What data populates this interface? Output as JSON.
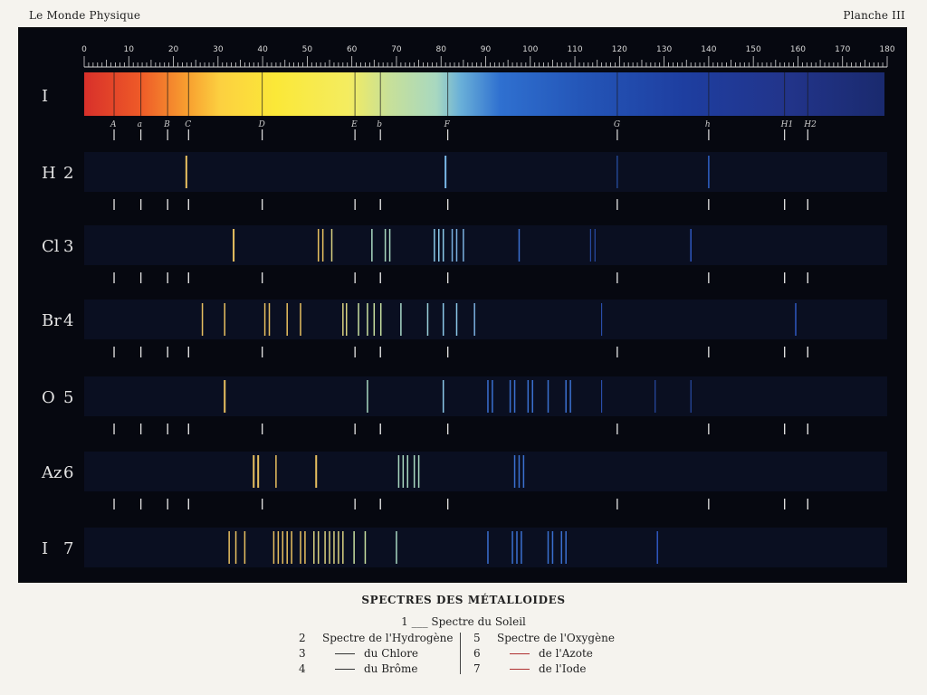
{
  "header": {
    "left": "Le Monde Physique",
    "right": "Planche III"
  },
  "plate": {
    "scale_ticks": [
      "0",
      "10",
      "20",
      "30",
      "40",
      "50",
      "60",
      "70",
      "80",
      "90",
      "100",
      "110",
      "120",
      "130",
      "140",
      "150",
      "160",
      "170",
      "180"
    ],
    "fraunhofer_lines": [
      {
        "label": "A",
        "pos": 6.7
      },
      {
        "label": "a",
        "pos": 12.7
      },
      {
        "label": "B",
        "pos": 18.7
      },
      {
        "label": "C",
        "pos": 23.4
      },
      {
        "label": "D",
        "pos": 39.9
      },
      {
        "label": "E",
        "pos": 60.7
      },
      {
        "label": "b",
        "pos": 66.4
      },
      {
        "label": "F",
        "pos": 81.5
      },
      {
        "label": "G",
        "pos": 119.5
      },
      {
        "label": "h",
        "pos": 140.0
      },
      {
        "label": "H1",
        "pos": 157.0
      },
      {
        "label": "H2",
        "pos": 162.2
      }
    ],
    "rows": [
      {
        "symbol": "I",
        "number": "",
        "kind": "solar"
      },
      {
        "symbol": "H",
        "number": "2",
        "kind": "emission",
        "lines": [
          [
            22.9,
            "#e8c060",
            2
          ],
          [
            81.0,
            "#7ab8e8",
            2
          ],
          [
            119.5,
            "#2f62c8",
            1
          ],
          [
            140.0,
            "#2f62c8",
            1.5
          ]
        ]
      },
      {
        "symbol": "Cl",
        "number": "3",
        "kind": "emission",
        "lines": [
          [
            33.5,
            "#e8c060",
            2
          ],
          [
            52.5,
            "#e8c060",
            1.5
          ],
          [
            53.5,
            "#e8c060",
            1.5
          ],
          [
            55.5,
            "#d8d080",
            1.5
          ],
          [
            64.5,
            "#a8d8c0",
            1.5
          ],
          [
            67.5,
            "#a8d8c0",
            1.5
          ],
          [
            68.5,
            "#a8d8c0",
            1.5
          ],
          [
            78.5,
            "#8ac8e8",
            1.5
          ],
          [
            79.5,
            "#8ac8e8",
            1.5
          ],
          [
            80.5,
            "#8ac8e8",
            1.5
          ],
          [
            82.5,
            "#7ab0e0",
            1.5
          ],
          [
            83.5,
            "#7ab0e0",
            1.5
          ],
          [
            85.0,
            "#7ab0e0",
            1.5
          ],
          [
            97.5,
            "#3a70d0",
            1.5
          ],
          [
            113.5,
            "#2f58c0",
            1
          ],
          [
            114.5,
            "#2f58c0",
            1
          ],
          [
            136.0,
            "#2f58c0",
            1.5
          ]
        ]
      },
      {
        "symbol": "Br",
        "number": "4",
        "kind": "emission",
        "lines": [
          [
            26.5,
            "#e8c060",
            1.5
          ],
          [
            31.5,
            "#e8c060",
            1.5
          ],
          [
            40.5,
            "#e8c060",
            1.5
          ],
          [
            41.5,
            "#e8c060",
            1.5
          ],
          [
            45.5,
            "#e8c060",
            1.5
          ],
          [
            48.5,
            "#e8c060",
            1.5
          ],
          [
            58.0,
            "#d8d080",
            1.5
          ],
          [
            58.8,
            "#d8d080",
            1.5
          ],
          [
            61.5,
            "#c8e0a0",
            1.5
          ],
          [
            63.5,
            "#c8e0a0",
            1.5
          ],
          [
            65.0,
            "#c8e0a0",
            1.5
          ],
          [
            66.5,
            "#c8e0a0",
            1.5
          ],
          [
            71.0,
            "#a8d8c8",
            1.5
          ],
          [
            77.0,
            "#9ad0d8",
            1.5
          ],
          [
            80.5,
            "#8ac8e8",
            1.5
          ],
          [
            83.5,
            "#8ac8e8",
            1.5
          ],
          [
            87.5,
            "#7ab0e0",
            1.5
          ],
          [
            116.0,
            "#2f58c0",
            1
          ],
          [
            159.5,
            "#2f58c0",
            1.5
          ]
        ]
      },
      {
        "symbol": "O",
        "number": "5",
        "kind": "emission",
        "lines": [
          [
            31.5,
            "#e8c060",
            2
          ],
          [
            63.5,
            "#a8d8c0",
            1.5
          ],
          [
            80.5,
            "#8ac8e8",
            1.5
          ],
          [
            90.5,
            "#3a70d0",
            1.5
          ],
          [
            91.5,
            "#3a70d0",
            1.5
          ],
          [
            95.5,
            "#3a70d0",
            1.5
          ],
          [
            96.5,
            "#3a70d0",
            1.5
          ],
          [
            99.5,
            "#3a70d0",
            1.5
          ],
          [
            100.5,
            "#3a70d0",
            1.5
          ],
          [
            104.0,
            "#3a70d0",
            1.5
          ],
          [
            108.0,
            "#3a70d0",
            1.5
          ],
          [
            109.0,
            "#3a70d0",
            1.5
          ],
          [
            116.0,
            "#2f58c0",
            1
          ],
          [
            128.0,
            "#2f58c0",
            1
          ],
          [
            136.0,
            "#2f58c0",
            1
          ]
        ]
      },
      {
        "symbol": "Az",
        "number": "6",
        "kind": "emission",
        "lines": [
          [
            38.0,
            "#e8c060",
            2
          ],
          [
            39.0,
            "#e8c060",
            2
          ],
          [
            43.0,
            "#e8c060",
            1.5
          ],
          [
            52.0,
            "#e8c060",
            2
          ],
          [
            70.5,
            "#a8d8c0",
            1.5
          ],
          [
            71.5,
            "#a8d8c0",
            1.5
          ],
          [
            72.5,
            "#a8d8c0",
            1.5
          ],
          [
            74.0,
            "#a8d8c0",
            1.5
          ],
          [
            75.0,
            "#a8d8c0",
            1.5
          ],
          [
            96.5,
            "#3a70d0",
            1.5
          ],
          [
            97.5,
            "#3a70d0",
            1.5
          ],
          [
            98.5,
            "#3a70d0",
            1.5
          ]
        ]
      },
      {
        "symbol": "I",
        "number": "7",
        "kind": "emission",
        "lines": [
          [
            32.5,
            "#e8c060",
            1.5
          ],
          [
            34.0,
            "#e8c060",
            1.5
          ],
          [
            36.0,
            "#e8c060",
            1.5
          ],
          [
            42.5,
            "#e8c060",
            1.5
          ],
          [
            43.5,
            "#e8c060",
            1.5
          ],
          [
            44.5,
            "#e8c060",
            1.5
          ],
          [
            45.5,
            "#e8c060",
            1.5
          ],
          [
            46.5,
            "#e8c060",
            1.5
          ],
          [
            48.5,
            "#e8c060",
            1.5
          ],
          [
            49.5,
            "#e8c060",
            1.5
          ],
          [
            51.5,
            "#d8d080",
            1.5
          ],
          [
            52.5,
            "#d8d080",
            1.5
          ],
          [
            54.0,
            "#d8d080",
            1.5
          ],
          [
            55.0,
            "#d8d080",
            1.5
          ],
          [
            56.0,
            "#d8d080",
            1.5
          ],
          [
            57.0,
            "#d8d080",
            1.5
          ],
          [
            58.0,
            "#d8d080",
            1.5
          ],
          [
            60.5,
            "#c8e0a0",
            1.5
          ],
          [
            63.0,
            "#c8e0a0",
            1.5
          ],
          [
            70.0,
            "#a8d8c0",
            1.5
          ],
          [
            90.5,
            "#3a70d0",
            1.5
          ],
          [
            96.0,
            "#3a70d0",
            1.5
          ],
          [
            97.0,
            "#3a70d0",
            1.5
          ],
          [
            98.0,
            "#3a70d0",
            1.5
          ],
          [
            104.0,
            "#3a70d0",
            1.5
          ],
          [
            105.0,
            "#3a70d0",
            1.5
          ],
          [
            107.0,
            "#3a70d0",
            1.5
          ],
          [
            108.0,
            "#3a70d0",
            1.5
          ],
          [
            128.5,
            "#2f58c0",
            1.5
          ]
        ]
      }
    ]
  },
  "caption": {
    "title": "SPECTRES DES MÉTALLOIDES",
    "sun_line": "1 ___ Spectre du Soleil",
    "left_items": [
      {
        "num": "2",
        "text": "Spectre de l'Hydrogène",
        "dash": false
      },
      {
        "num": "3",
        "text": "du Chlore",
        "dash": true
      },
      {
        "num": "4",
        "text": "du Brôme",
        "dash": true
      }
    ],
    "right_items": [
      {
        "num": "5",
        "text": "Spectre de l'Oxygène",
        "dash": false
      },
      {
        "num": "6",
        "text": "de l'Azote",
        "dash": true
      },
      {
        "num": "7",
        "text": "de l'Iode",
        "dash": true
      }
    ]
  },
  "colors": {
    "plate_bg": "#060810",
    "plate_border": "#101010",
    "scale": "#d8d8d8",
    "marker": "#e0e0e0"
  }
}
